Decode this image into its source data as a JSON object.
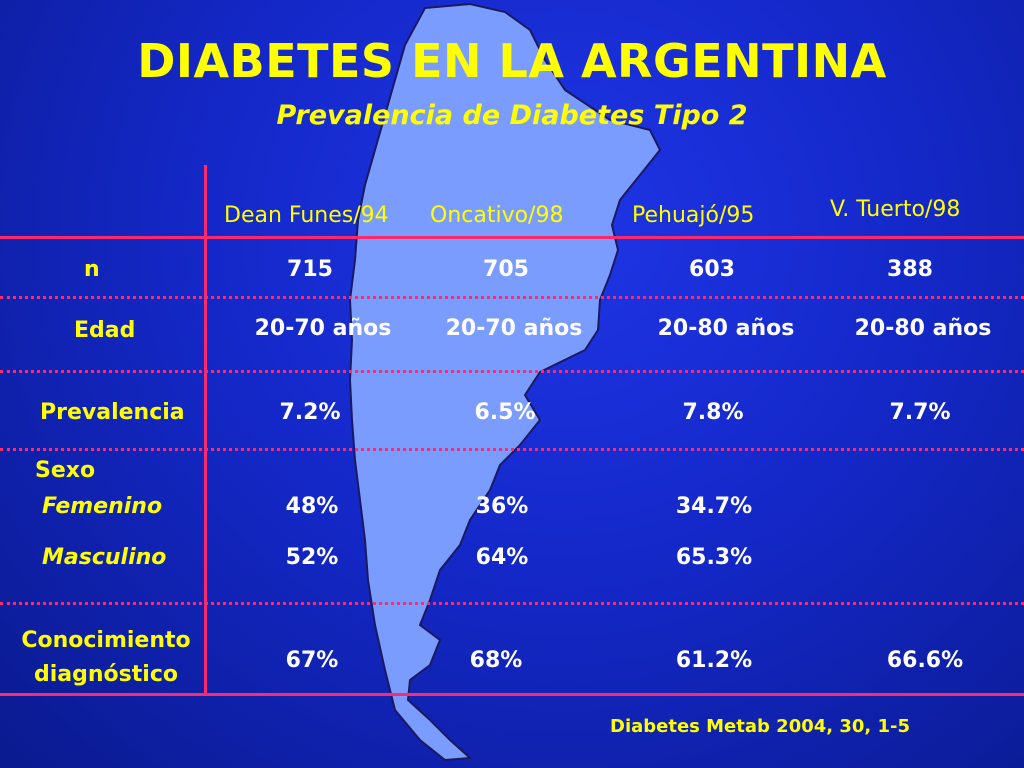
{
  "title": "DIABETES EN LA ARGENTINA",
  "subtitle": "Prevalencia de Diabetes Tipo 2",
  "columns": [
    "Dean Funes/94",
    "Oncativo/98",
    "Pehuajó/95",
    "V. Tuerto/98"
  ],
  "rows": {
    "n": {
      "label": "n",
      "values": [
        "715",
        "705",
        "603",
        "388"
      ]
    },
    "edad": {
      "label": "Edad",
      "values": [
        "20-70 años",
        "20-70 años",
        "20-80 años",
        "20-80 años"
      ]
    },
    "prevalencia": {
      "label": "Prevalencia",
      "values": [
        "7.2%",
        "6.5%",
        "7.8%",
        "7.7%"
      ]
    },
    "sexo_label": "Sexo",
    "femenino": {
      "label": "Femenino",
      "values": [
        "48%",
        "36%",
        "34.7%",
        ""
      ]
    },
    "masculino": {
      "label": "Masculino",
      "values": [
        "52%",
        "64%",
        "65.3%",
        ""
      ]
    },
    "conocimiento": {
      "label_line1": "Conocimiento",
      "label_line2": "diagnóstico",
      "values": [
        "67%",
        "68%",
        "61.2%",
        "66.6%"
      ]
    }
  },
  "source": "Diabetes Metab 2004, 30, 1-5",
  "colors": {
    "background": "#1428c8",
    "map": "#7b9cff",
    "title": "#ffff00",
    "lines": "#ff2a6e",
    "values": "#ffffff"
  },
  "icons": {
    "background_map": "argentina-map"
  }
}
